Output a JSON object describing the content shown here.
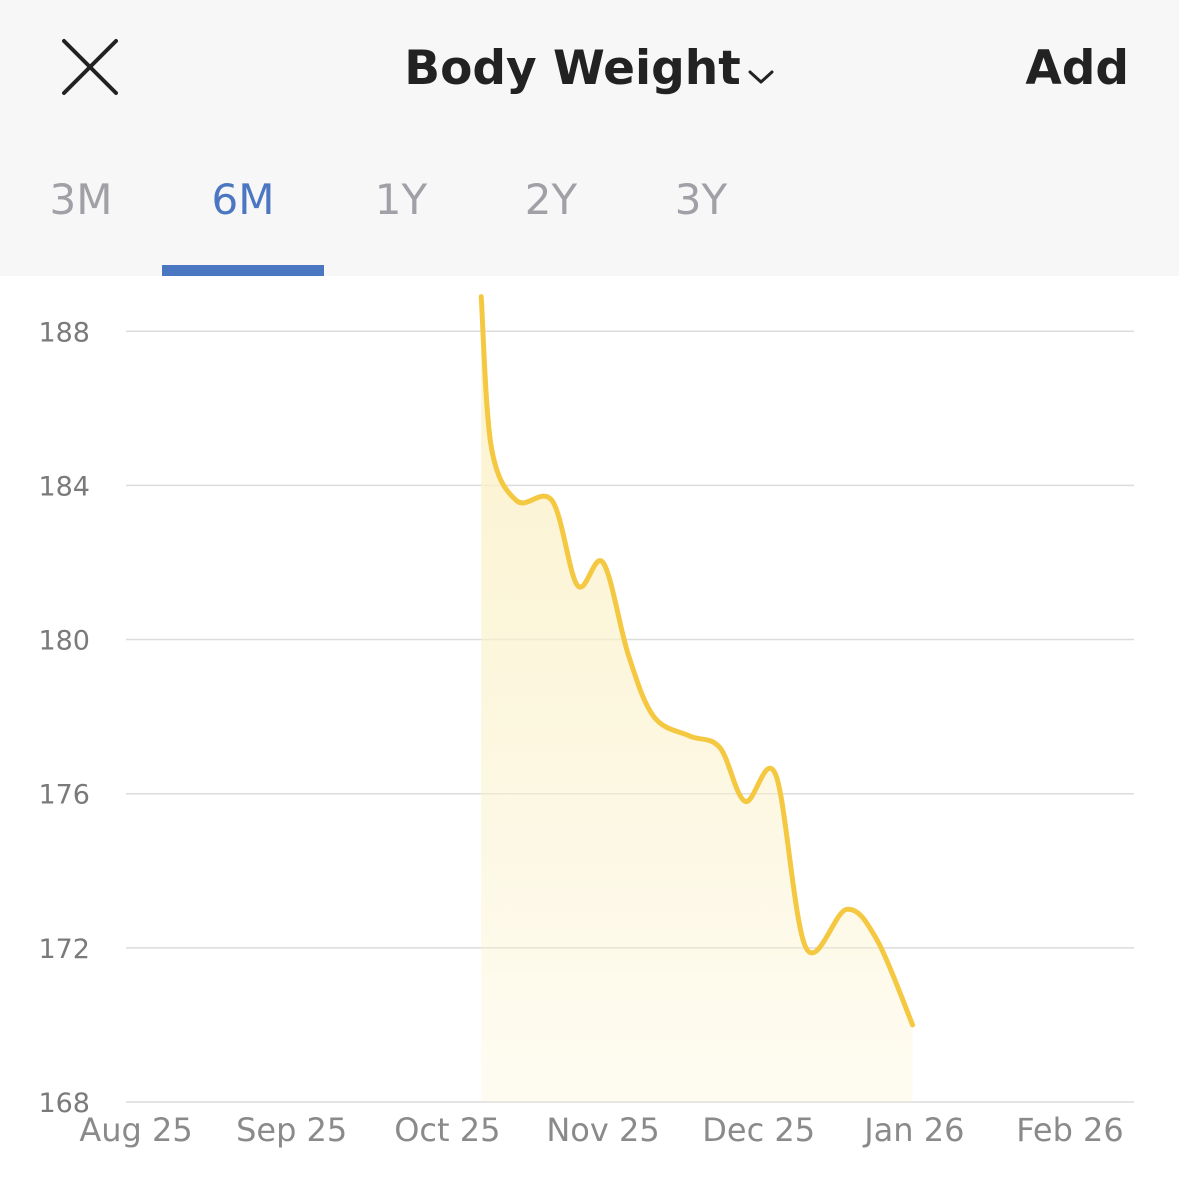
{
  "header": {
    "title": "Body Weight",
    "add_label": "Add",
    "close_icon": "close-icon",
    "dropdown_icon": "chevron-down-icon"
  },
  "tabs": [
    {
      "label": "3M",
      "active": false
    },
    {
      "label": "6M",
      "active": true
    },
    {
      "label": "1Y",
      "active": false
    },
    {
      "label": "2Y",
      "active": false
    },
    {
      "label": "3Y",
      "active": false
    }
  ],
  "colors": {
    "accent": "#4a76c2",
    "line": "#f5c842",
    "fill": "#fbf1c9",
    "header_bg": "#f7f7f7",
    "gridline": "#dcdcdc"
  },
  "chart_data": {
    "type": "area",
    "title": "",
    "xlabel": "",
    "ylabel": "",
    "ylim": [
      168,
      188.5
    ],
    "xlim": [
      "2025-08-25",
      "2026-02-25"
    ],
    "yticks": [
      188,
      184,
      180,
      176,
      172,
      168
    ],
    "xticks": [
      "Aug 25",
      "Sep 25",
      "Oct 25",
      "Nov 25",
      "Dec 25",
      "Jan 26",
      "Feb 26"
    ],
    "grid": true,
    "series": [
      {
        "points": [
          {
            "x": "2025-11-01",
            "y": 188.9
          },
          {
            "x": "2025-11-03",
            "y": 185.0
          },
          {
            "x": "2025-11-08",
            "y": 183.6
          },
          {
            "x": "2025-11-15",
            "y": 183.6
          },
          {
            "x": "2025-11-20",
            "y": 181.4
          },
          {
            "x": "2025-11-25",
            "y": 182.0
          },
          {
            "x": "2025-11-30",
            "y": 179.6
          },
          {
            "x": "2025-12-05",
            "y": 178.0
          },
          {
            "x": "2025-12-12",
            "y": 177.5
          },
          {
            "x": "2025-12-18",
            "y": 177.2
          },
          {
            "x": "2025-12-23",
            "y": 175.8
          },
          {
            "x": "2025-12-29",
            "y": 176.5
          },
          {
            "x": "2026-01-04",
            "y": 172.0
          },
          {
            "x": "2026-01-12",
            "y": 173.0
          },
          {
            "x": "2026-01-18",
            "y": 172.2
          },
          {
            "x": "2026-01-25",
            "y": 170.0
          }
        ]
      }
    ]
  }
}
